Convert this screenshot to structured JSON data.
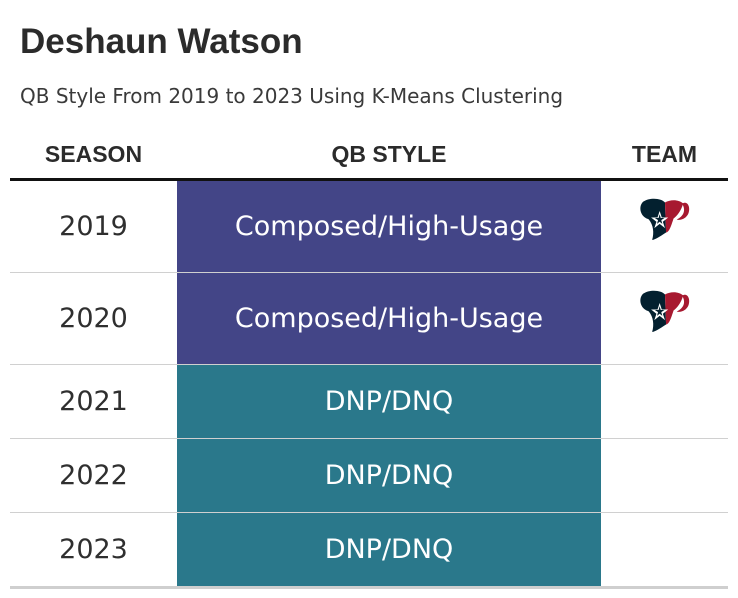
{
  "title": "Deshaun Watson",
  "subtitle": "QB Style From 2019 to 2023 Using K-Means Clustering",
  "columns": {
    "season": "SEASON",
    "qb_style": "QB STYLE",
    "team": "TEAM"
  },
  "colors": {
    "composed_high_usage": "#434587",
    "dnp_dnq": "#2a788b",
    "texans_navy": "#03202f",
    "texans_red": "#a71930"
  },
  "rows": [
    {
      "season": "2019",
      "qb_style": "Composed/High-Usage",
      "style_key": "composed_high_usage",
      "team_logo": "houston-texans-logo"
    },
    {
      "season": "2020",
      "qb_style": "Composed/High-Usage",
      "style_key": "composed_high_usage",
      "team_logo": "houston-texans-logo"
    },
    {
      "season": "2021",
      "qb_style": "DNP/DNQ",
      "style_key": "dnp_dnq",
      "team_logo": ""
    },
    {
      "season": "2022",
      "qb_style": "DNP/DNQ",
      "style_key": "dnp_dnq",
      "team_logo": ""
    },
    {
      "season": "2023",
      "qb_style": "DNP/DNQ",
      "style_key": "dnp_dnq",
      "team_logo": ""
    }
  ]
}
